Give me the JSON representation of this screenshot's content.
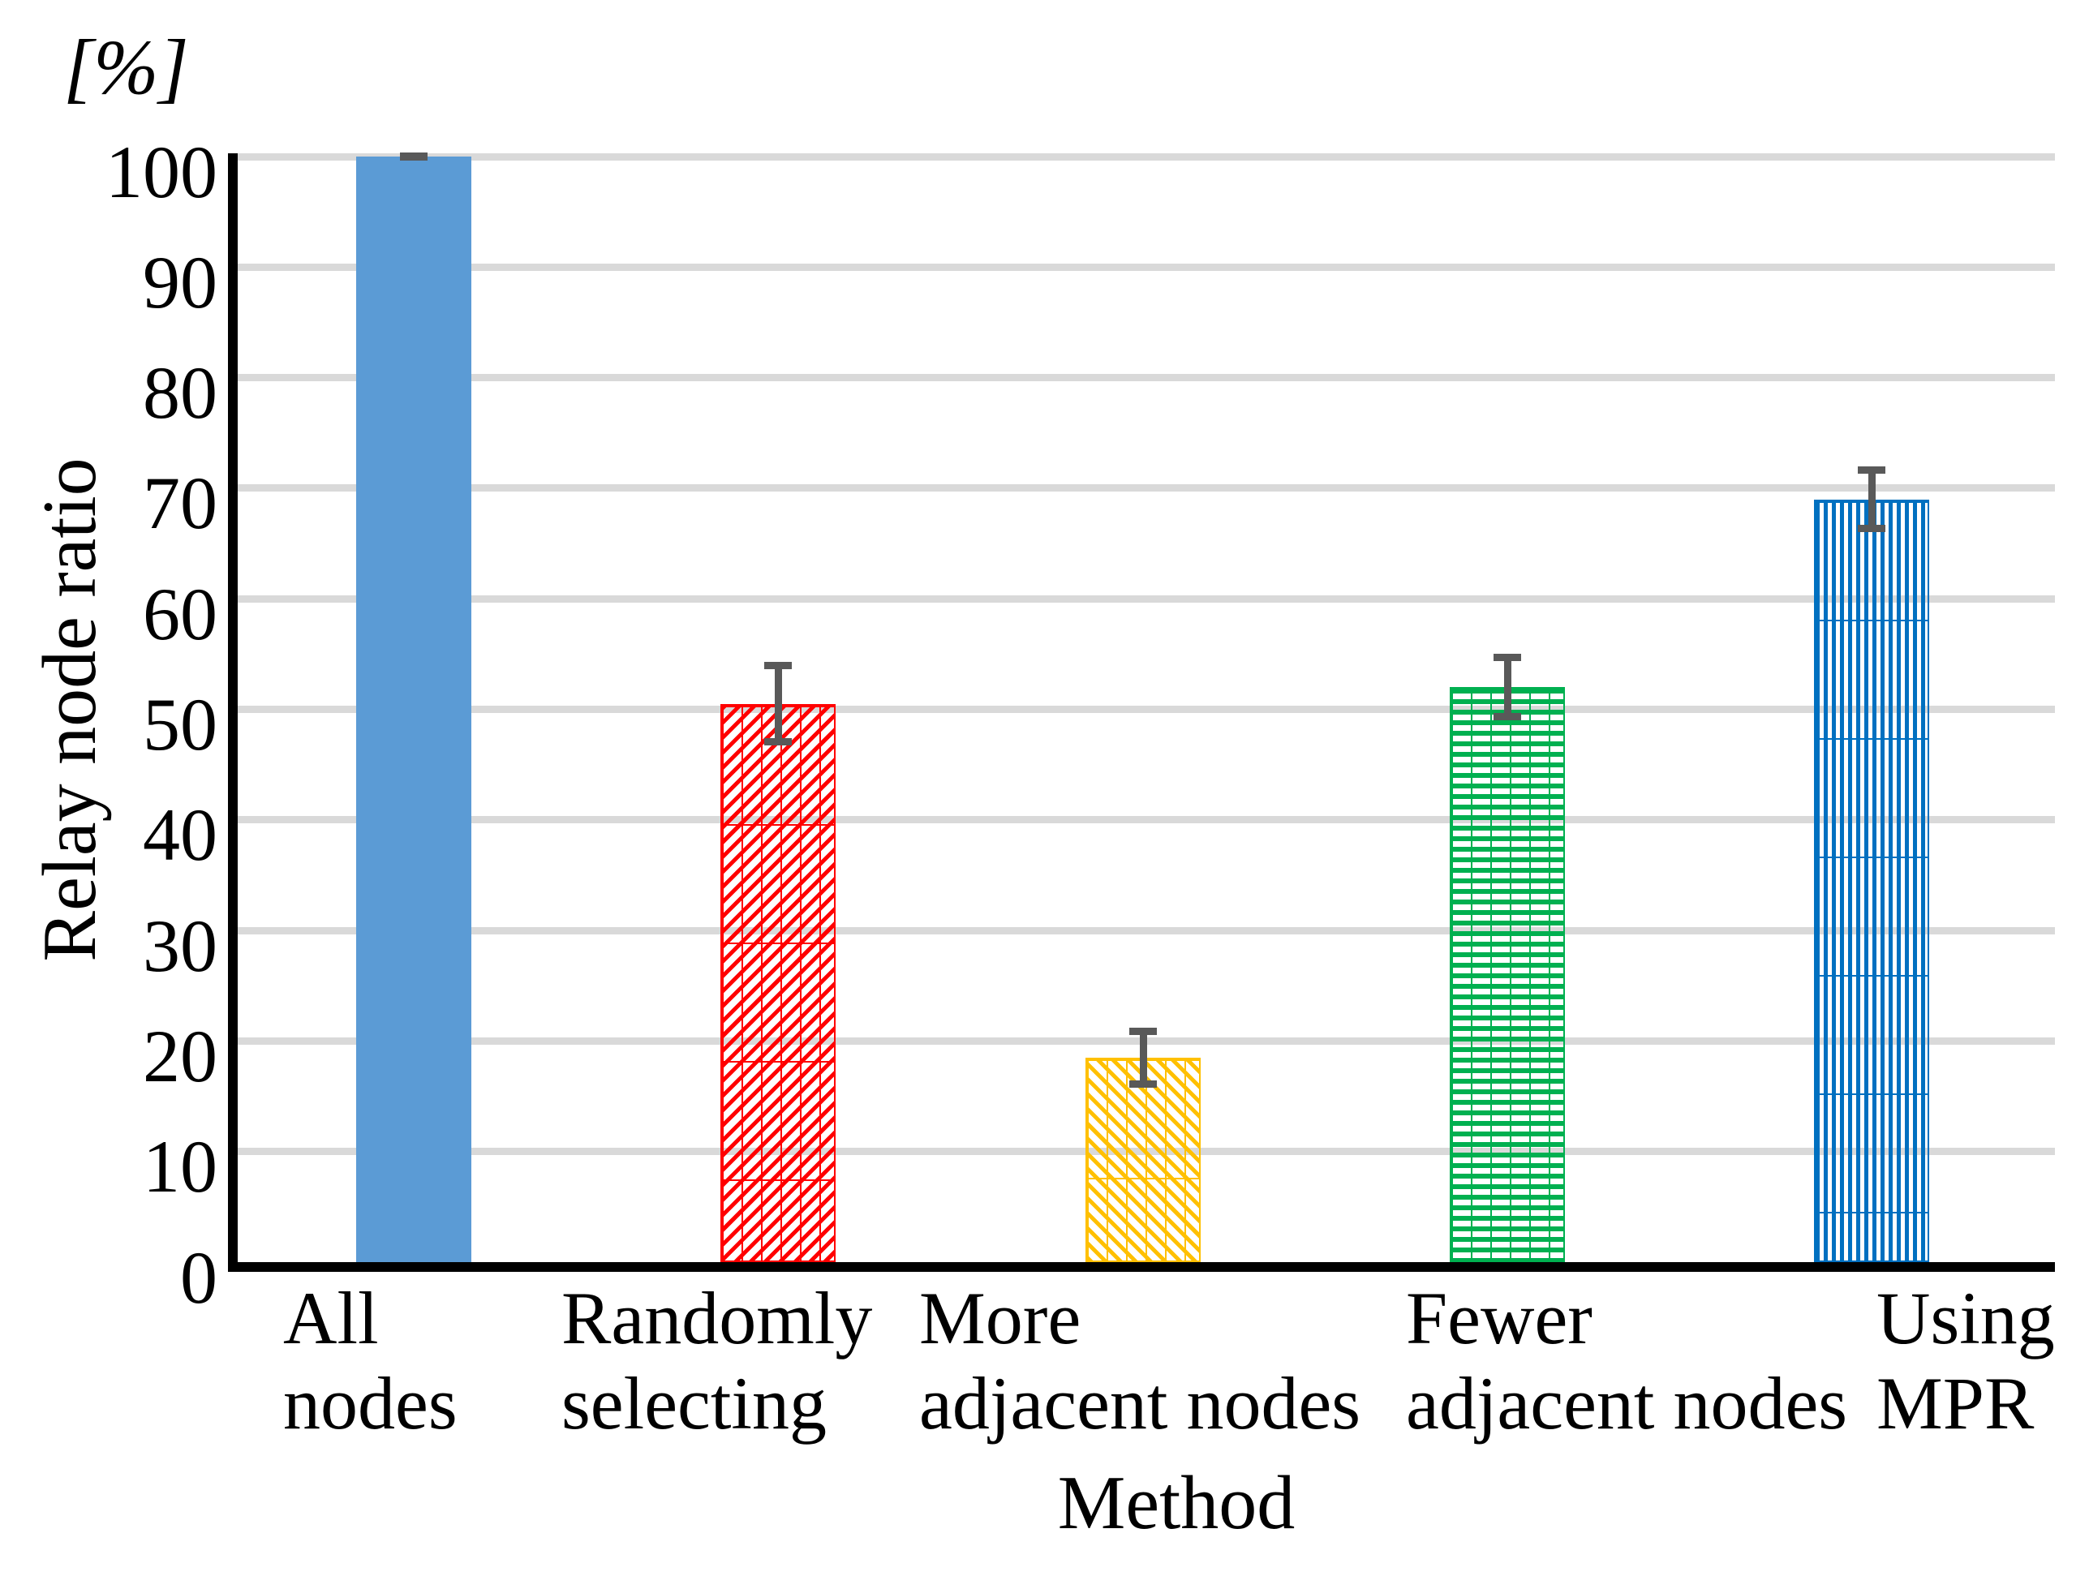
{
  "chart_data": {
    "type": "bar",
    "title": "",
    "unit_label": "[%]",
    "ylabel": "Relay node ratio",
    "xlabel": "Method",
    "ylim": [
      0,
      100
    ],
    "ytick_step": 10,
    "yticks": [
      0,
      10,
      20,
      30,
      40,
      50,
      60,
      70,
      80,
      90,
      100
    ],
    "grid": true,
    "legend_position": "none",
    "categories": [
      [
        "All",
        "nodes"
      ],
      [
        "Randomly",
        "selecting"
      ],
      [
        "More",
        "adjacent nodes"
      ],
      [
        "Fewer",
        "adjacent nodes"
      ],
      [
        "Using",
        "MPR"
      ]
    ],
    "values": [
      100,
      50.5,
      18.5,
      52,
      69
    ],
    "errors": [
      0.3,
      3.8,
      2.7,
      3.0,
      3.0
    ],
    "bars": [
      {
        "name": "all-nodes",
        "color": "#5B9BD5",
        "pattern": "solid"
      },
      {
        "name": "randomly-selecting",
        "color": "#FF0000",
        "pattern": "diagonal-up"
      },
      {
        "name": "more-adjacent-nodes",
        "color": "#FFC000",
        "pattern": "diagonal-down"
      },
      {
        "name": "fewer-adjacent-nodes",
        "color": "#00B050",
        "pattern": "horizontal"
      },
      {
        "name": "using-mpr",
        "color": "#0070C0",
        "pattern": "vertical"
      }
    ],
    "error_bar_color": "#595959",
    "gridline_color": "#D9D9D9",
    "axis_color": "#000000",
    "background_color": "#FFFFFF"
  }
}
